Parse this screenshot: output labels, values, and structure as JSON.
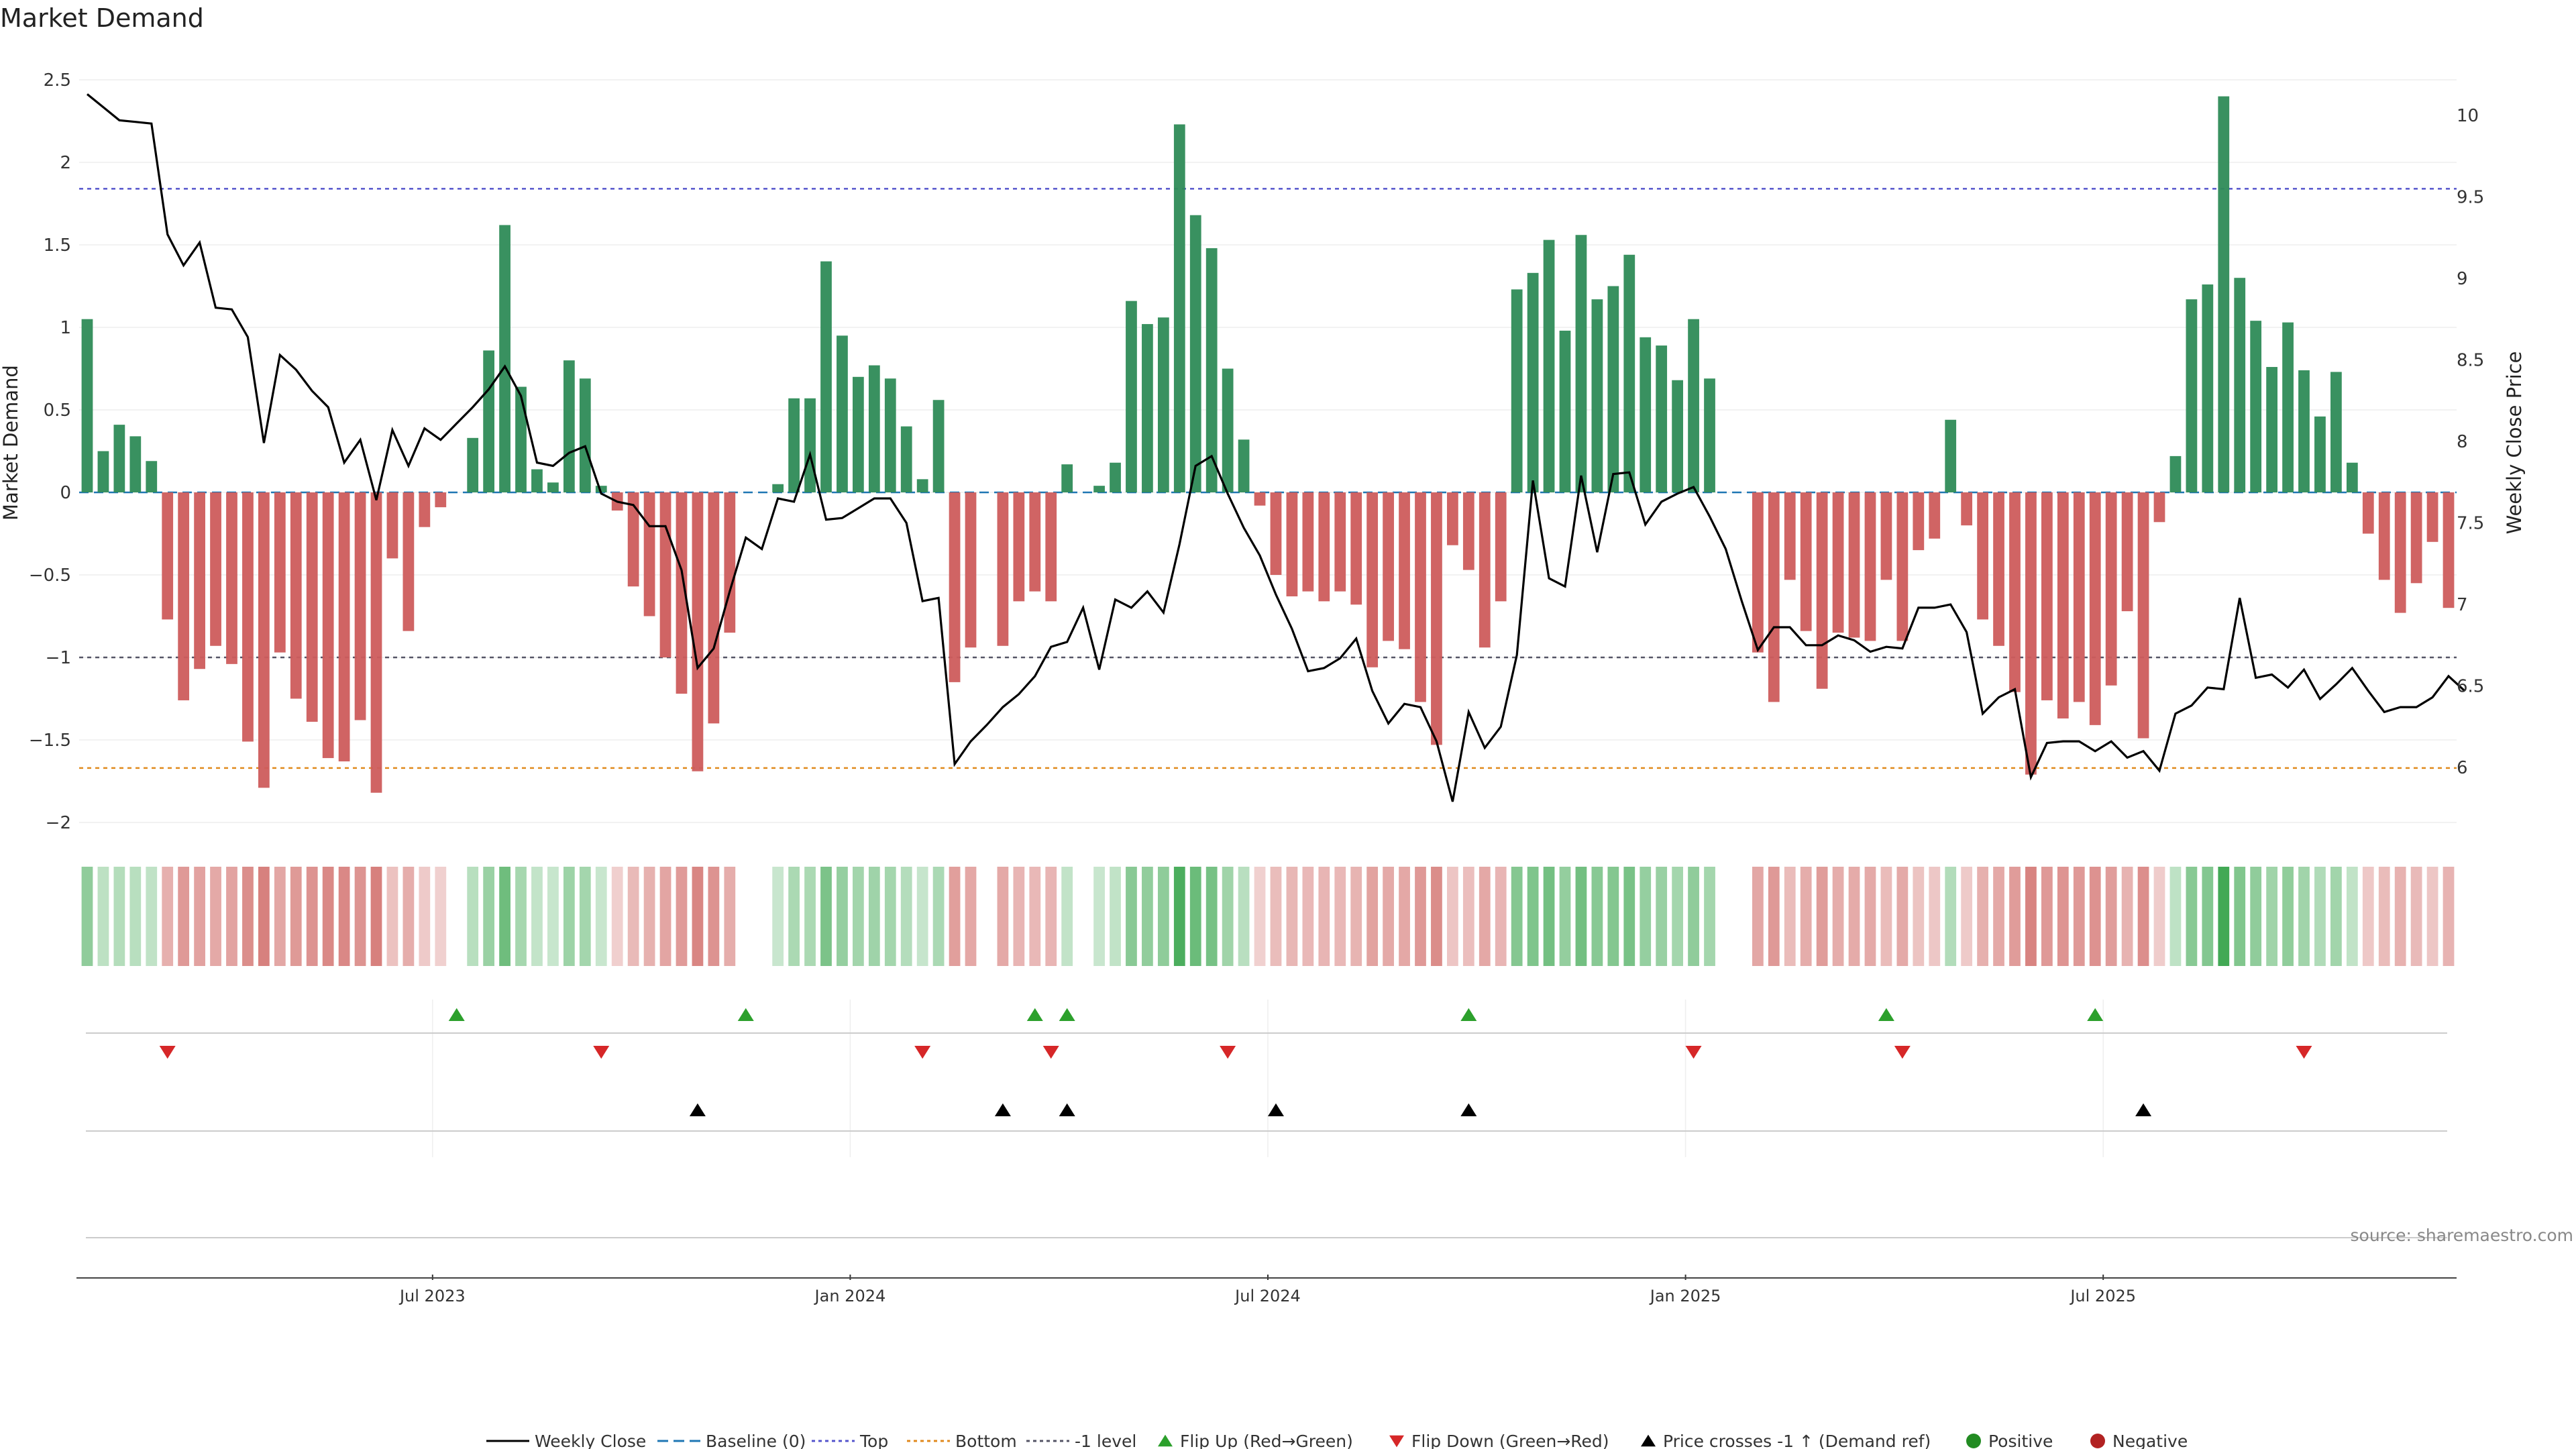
{
  "chart_data": {
    "type": "bar+line",
    "title": "Market Demand",
    "ylabel_left": "Market Demand",
    "ylabel_right": "Weekly Close Price",
    "source": "source: sharemaestro.com",
    "ylim_left": [
      -2.2,
      2.6
    ],
    "ylim_right": [
      5.65,
      10.3
    ],
    "yticks_left": [
      "2.5",
      "2",
      "1.5",
      "1",
      "0.5",
      "0",
      "−0.5",
      "−1",
      "−1.5",
      "−2"
    ],
    "yticks_right": [
      "10",
      "9.5",
      "9",
      "8.5",
      "8",
      "7.5",
      "7",
      "6.5",
      "6"
    ],
    "xlabels": [
      {
        "label": "Jul 2023",
        "week": 22
      },
      {
        "label": "Jan 2024",
        "week": 48
      },
      {
        "label": "Jul 2024",
        "week": 74
      },
      {
        "label": "Jan 2025",
        "week": 100
      },
      {
        "label": "Jul 2025",
        "week": 126
      }
    ],
    "reference_lines": {
      "top": 1.84,
      "bottom": -1.67,
      "minus_one": -1.0
    },
    "demand": [
      1.05,
      0.25,
      0.41,
      0.34,
      0.19,
      -0.77,
      -1.26,
      -1.07,
      -0.93,
      -1.04,
      -1.51,
      -1.79,
      -0.97,
      -1.25,
      -1.39,
      -1.61,
      -1.63,
      -1.38,
      -1.82,
      -0.4,
      -0.84,
      -0.21,
      -0.09,
      0.0,
      0.33,
      0.86,
      1.62,
      0.64,
      0.14,
      0.06,
      0.8,
      0.69,
      0.04,
      -0.11,
      -0.57,
      -0.75,
      -1.0,
      -1.22,
      -1.69,
      -1.4,
      -0.85,
      0.0,
      0.0,
      0.05,
      0.57,
      0.57,
      1.4,
      0.95,
      0.7,
      0.77,
      0.69,
      0.4,
      0.08,
      0.56,
      -1.15,
      -0.94,
      0.0,
      -0.93,
      -0.66,
      -0.6,
      -0.66,
      0.17,
      0.0,
      0.04,
      0.18,
      1.16,
      1.02,
      1.06,
      2.23,
      1.68,
      1.48,
      0.75,
      0.32,
      -0.08,
      -0.5,
      -0.63,
      -0.6,
      -0.66,
      -0.6,
      -0.68,
      -1.06,
      -0.9,
      -0.95,
      -1.27,
      -1.53,
      -0.32,
      -0.47,
      -0.94,
      -0.66,
      1.23,
      1.33,
      1.53,
      0.98,
      1.56,
      1.17,
      1.25,
      1.44,
      0.94,
      0.89,
      0.68,
      1.05,
      0.69,
      0.0,
      0.0,
      -0.97,
      -1.27,
      -0.53,
      -0.84,
      -1.19,
      -0.85,
      -0.88,
      -0.9,
      -0.53,
      -0.9,
      -0.35,
      -0.28,
      0.44,
      -0.2,
      -0.77,
      -0.93,
      -1.21,
      -1.71,
      -1.26,
      -1.37,
      -1.27,
      -1.41,
      -1.17,
      -0.72,
      -1.49,
      -0.18,
      0.22,
      1.17,
      1.26,
      2.4,
      1.3,
      1.04,
      0.76,
      1.03,
      0.74,
      0.46,
      0.73,
      0.18,
      -0.25,
      -0.53,
      -0.73,
      -0.55,
      -0.3,
      -0.7
    ],
    "weekly_close": [
      10.13,
      10.05,
      9.97,
      9.96,
      9.95,
      9.27,
      9.08,
      9.22,
      8.82,
      8.81,
      8.64,
      7.99,
      8.53,
      8.44,
      8.31,
      8.21,
      7.87,
      8.01,
      7.64,
      8.07,
      7.85,
      8.08,
      8.01,
      8.11,
      8.21,
      8.32,
      8.46,
      8.28,
      7.87,
      7.85,
      7.93,
      7.97,
      7.68,
      7.63,
      7.61,
      7.48,
      7.48,
      7.21,
      6.61,
      6.73,
      7.08,
      7.41,
      7.34,
      7.65,
      7.63,
      7.92,
      7.52,
      7.53,
      7.59,
      7.65,
      7.65,
      7.5,
      7.02,
      7.04,
      6.02,
      6.16,
      6.26,
      6.37,
      6.45,
      6.56,
      6.74,
      6.77,
      6.98,
      6.6,
      7.03,
      6.98,
      7.08,
      6.95,
      7.37,
      7.85,
      7.91,
      7.68,
      7.47,
      7.3,
      7.06,
      6.85,
      6.59,
      6.61,
      6.67,
      6.79,
      6.47,
      6.27,
      6.39,
      6.37,
      6.16,
      5.79,
      6.34,
      6.12,
      6.25,
      6.69,
      7.76,
      7.16,
      7.11,
      7.79,
      7.32,
      7.8,
      7.81,
      7.49,
      7.63,
      7.68,
      7.72,
      7.54,
      7.34,
      7.02,
      6.72,
      6.86,
      6.86,
      6.75,
      6.75,
      6.81,
      6.78,
      6.71,
      6.74,
      6.73,
      6.98,
      6.98,
      7.0,
      6.83,
      6.33,
      6.43,
      6.48,
      5.94,
      6.15,
      6.16,
      6.16,
      6.1,
      6.16,
      6.06,
      6.1,
      5.98,
      6.33,
      6.38,
      6.49,
      6.48,
      7.04,
      6.55,
      6.57,
      6.49,
      6.6,
      6.42,
      6.51,
      6.61,
      6.47,
      6.34,
      6.37,
      6.37,
      6.43,
      6.56,
      6.47
    ],
    "signals": {
      "flip_up": [
        23,
        41,
        59,
        61,
        86,
        112,
        125
      ],
      "flip_down": [
        5,
        32,
        52,
        60,
        71,
        100,
        113,
        138
      ],
      "price_cross": [
        38,
        57,
        61,
        74,
        86,
        128
      ]
    },
    "legend": [
      "Weekly Close",
      "Baseline (0)",
      "Top",
      "Bottom",
      "-1 level",
      "Flip Up (Red→Green)",
      "Flip Down (Green→Red)",
      "Price crosses -1 ↑ (Demand ref)",
      "Positive",
      "Negative"
    ]
  },
  "colors": {
    "positive": "#2e8b57",
    "negative": "#cd5c5c",
    "top_line": "#5555cc",
    "bottom_line": "#e08a1e",
    "minus_one_line": "#555566",
    "baseline": "#1f77b4",
    "flip_up": "#2ca02c",
    "flip_down": "#d62728",
    "price": "#000000",
    "legend_positive": "#228b22",
    "legend_negative": "#b22222"
  }
}
